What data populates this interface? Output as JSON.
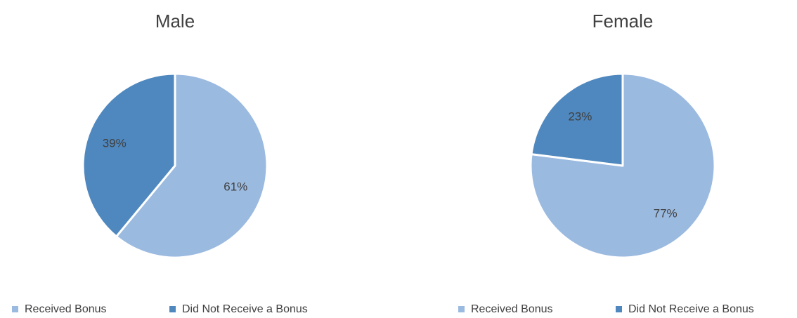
{
  "chart_data": [
    {
      "type": "pie",
      "title": "Male",
      "categories": [
        "Received Bonus",
        "Did Not Receive a Bonus"
      ],
      "values": [
        61,
        39
      ],
      "value_labels": [
        "61%",
        "39%"
      ],
      "colors": [
        "#9bbae0",
        "#4f88bf"
      ],
      "legend": "bottom"
    },
    {
      "type": "pie",
      "title": "Female",
      "categories": [
        "Received Bonus",
        "Did Not Receive a Bonus"
      ],
      "values": [
        77,
        23
      ],
      "value_labels": [
        "77%",
        "23%"
      ],
      "colors": [
        "#9bbae0",
        "#4f88bf"
      ],
      "legend": "bottom"
    }
  ]
}
